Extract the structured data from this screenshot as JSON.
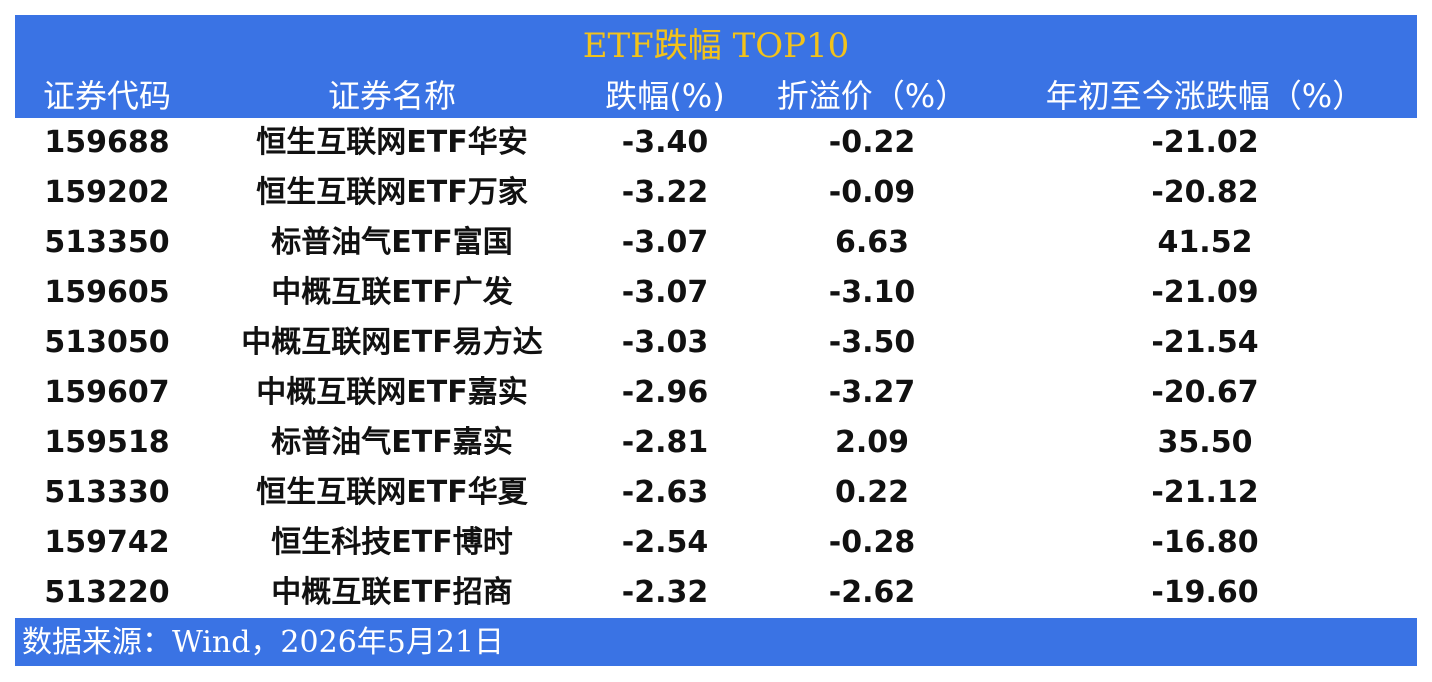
{
  "title": "ETF跌幅 TOP10",
  "table": {
    "header": [
      "证券代码",
      "证券名称",
      "跌幅(%)",
      "折溢价（%）",
      "年初至今涨跌幅（%）"
    ],
    "rows": [
      [
        "159688",
        "恒生互联网ETF华安",
        "-3.40",
        "-0.22",
        "-21.02"
      ],
      [
        "159202",
        "恒生互联网ETF万家",
        "-3.22",
        "-0.09",
        "-20.82"
      ],
      [
        "513350",
        "标普油气ETF富国",
        "-3.07",
        "6.63",
        "41.52"
      ],
      [
        "159605",
        "中概互联ETF广发",
        "-3.07",
        "-3.10",
        "-21.09"
      ],
      [
        "513050",
        "中概互联网ETF易方达",
        "-3.03",
        "-3.50",
        "-21.54"
      ],
      [
        "159607",
        "中概互联网ETF嘉实",
        "-2.96",
        "-3.27",
        "-20.67"
      ],
      [
        "159518",
        "标普油气ETF嘉实",
        "-2.81",
        "2.09",
        "35.50"
      ],
      [
        "513330",
        "恒生互联网ETF华夏",
        "-2.63",
        "0.22",
        "-21.12"
      ],
      [
        "159742",
        "恒生科技ETF博时",
        "-2.54",
        "-0.28",
        "-16.80"
      ],
      [
        "513220",
        "中概互联ETF招商",
        "-2.32",
        "-2.62",
        "-19.60"
      ]
    ]
  },
  "footer": "数据来源：Wind，2026年5月21日"
}
